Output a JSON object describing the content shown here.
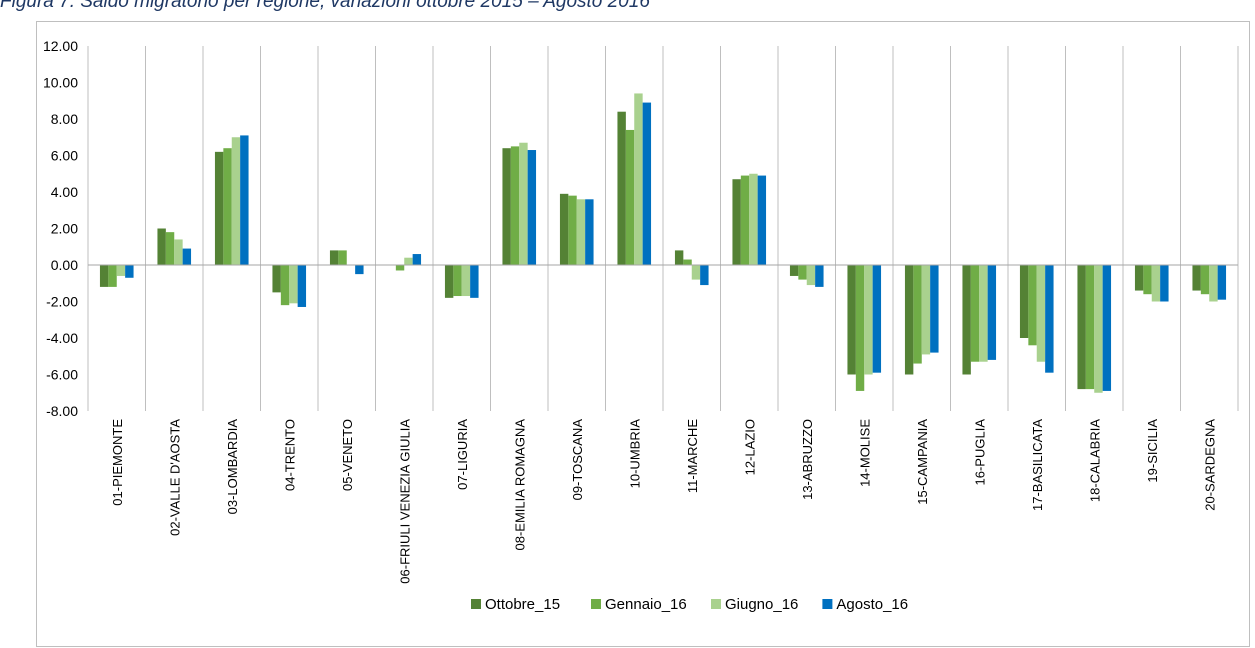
{
  "caption": "Figura 7. Saldo migratorio per regione, variazioni ottobre 2015 – Agosto 2016",
  "chart_data": {
    "type": "bar",
    "title": "",
    "xlabel": "",
    "ylabel": "",
    "ylim": [
      -8,
      12
    ],
    "yticks": [
      "12.00",
      "10.00",
      "8.00",
      "6.00",
      "4.00",
      "2.00",
      "0.00",
      "-2.00",
      "-4.00",
      "-6.00",
      "-8.00"
    ],
    "yticks_values": [
      12,
      10,
      8,
      6,
      4,
      2,
      0,
      -2,
      -4,
      -6,
      -8
    ],
    "grid": "vertical category separators",
    "legend_position": "bottom",
    "categories": [
      "01-PIEMONTE",
      "02-VALLE D'AOSTA",
      "03-LOMBARDIA",
      "04-TRENTO",
      "05-VENETO",
      "06-FRIULI VENEZIA GIULIA",
      "07-LIGURIA",
      "08-EMILIA ROMAGNA",
      "09-TOSCANA",
      "10-UMBRIA",
      "11-MARCHE",
      "12-LAZIO",
      "13-ABRUZZO",
      "14-MOLISE",
      "15-CAMPANIA",
      "16-PUGLIA",
      "17-BASILICATA",
      "18-CALABRIA",
      "19-SICILIA",
      "20-SARDEGNA"
    ],
    "series": [
      {
        "name": "Ottobre_15",
        "color": "#548235",
        "values": [
          -1.2,
          2.0,
          6.2,
          -1.5,
          0.8,
          0.0,
          -1.8,
          6.4,
          3.9,
          8.4,
          0.8,
          4.7,
          -0.6,
          -6.0,
          -6.0,
          -6.0,
          -4.0,
          -6.8,
          -1.4,
          -1.4
        ]
      },
      {
        "name": "Gennaio_16",
        "color": "#70ad47",
        "values": [
          -1.2,
          1.8,
          6.4,
          -2.2,
          0.8,
          -0.3,
          -1.7,
          6.5,
          3.8,
          7.4,
          0.3,
          4.9,
          -0.8,
          -6.9,
          -5.4,
          -5.3,
          -4.4,
          -6.8,
          -1.6,
          -1.6
        ]
      },
      {
        "name": "Giugno_16",
        "color": "#a9d18e",
        "values": [
          -0.6,
          1.4,
          7.0,
          -2.1,
          0.0,
          0.4,
          -1.7,
          6.7,
          3.6,
          9.4,
          -0.8,
          5.0,
          -1.1,
          -6.0,
          -4.9,
          -5.3,
          -5.3,
          -7.0,
          -2.0,
          -2.0
        ]
      },
      {
        "name": "Agosto_16",
        "color": "#0070c0",
        "values": [
          -0.7,
          0.9,
          7.1,
          -2.3,
          -0.5,
          0.6,
          -1.8,
          6.3,
          3.6,
          8.9,
          -1.1,
          4.9,
          -1.2,
          -5.9,
          -4.8,
          -5.2,
          -5.9,
          -6.9,
          -2.0,
          -1.9
        ]
      }
    ]
  }
}
